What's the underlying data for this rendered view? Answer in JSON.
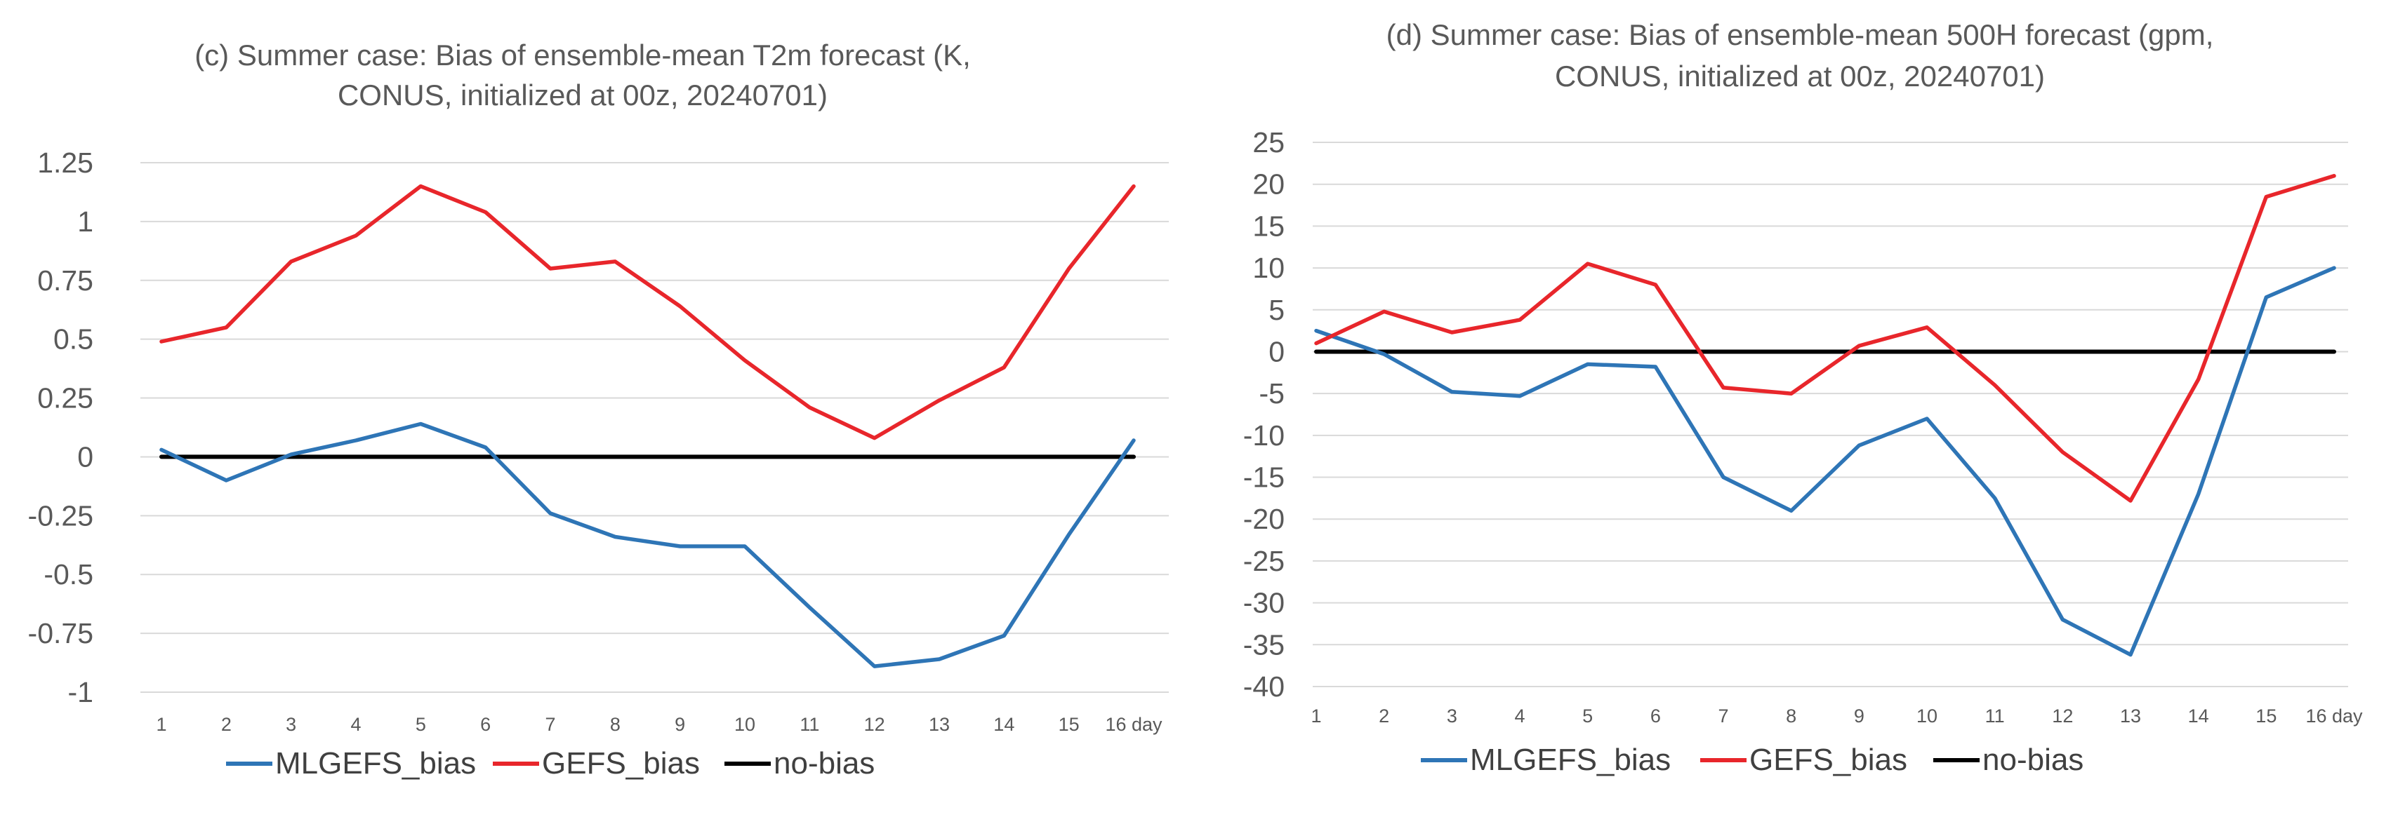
{
  "chart_data": [
    {
      "type": "line",
      "title_line1": "(c) Summer case: Bias of ensemble-mean T2m forecast (K,",
      "title_line2": "CONUS, initialized at 00z, 20240701)",
      "categories": [
        "1",
        "2",
        "3",
        "4",
        "5",
        "6",
        "7",
        "8",
        "9",
        "10",
        "11",
        "12",
        "13",
        "14",
        "15",
        "16 day"
      ],
      "ylim": [
        -1,
        1.25
      ],
      "yticks": [
        "1.25",
        "1",
        "0.75",
        "0.5",
        "0.25",
        "0",
        "-0.25",
        "-0.5",
        "-0.75",
        "-1"
      ],
      "grid": true,
      "legend_position": "bottom",
      "series": [
        {
          "name": "MLGEFS_bias",
          "color": "#2e75b6",
          "values": [
            0.03,
            -0.1,
            0.01,
            0.07,
            0.14,
            0.04,
            -0.24,
            -0.34,
            -0.38,
            -0.38,
            -0.64,
            -0.89,
            -0.86,
            -0.76,
            -0.33,
            0.07
          ]
        },
        {
          "name": "GEFS_bias",
          "color": "#e8262b",
          "values": [
            0.49,
            0.55,
            0.83,
            0.94,
            1.15,
            1.04,
            0.8,
            0.83,
            0.64,
            0.41,
            0.21,
            0.08,
            0.24,
            0.38,
            0.8,
            1.15
          ]
        },
        {
          "name": "no-bias",
          "color": "#000000",
          "values": [
            0,
            0,
            0,
            0,
            0,
            0,
            0,
            0,
            0,
            0,
            0,
            0,
            0,
            0,
            0,
            0
          ]
        }
      ]
    },
    {
      "type": "line",
      "title_line1": "(d) Summer case: Bias of ensemble-mean 500H forecast (gpm,",
      "title_line2": "CONUS, initialized at 00z, 20240701)",
      "categories": [
        "1",
        "2",
        "3",
        "4",
        "5",
        "6",
        "7",
        "8",
        "9",
        "10",
        "11",
        "12",
        "13",
        "14",
        "15",
        "16 day"
      ],
      "ylim": [
        -40,
        25
      ],
      "yticks": [
        "25",
        "20",
        "15",
        "10",
        "5",
        "0",
        "-5",
        "-10",
        "-15",
        "-20",
        "-25",
        "-30",
        "-35",
        "-40"
      ],
      "grid": true,
      "legend_position": "bottom",
      "series": [
        {
          "name": "MLGEFS_bias",
          "color": "#2e75b6",
          "values": [
            2.5,
            -0.3,
            -4.8,
            -5.3,
            -1.5,
            -1.8,
            -15,
            -19,
            -11.2,
            -8,
            -17.5,
            -32,
            -36.2,
            -17,
            6.5,
            10
          ]
        },
        {
          "name": "GEFS_bias",
          "color": "#e8262b",
          "values": [
            1,
            4.8,
            2.3,
            3.8,
            10.5,
            8,
            -4.3,
            -5,
            0.7,
            2.9,
            -4,
            -12,
            -17.8,
            -3.3,
            18.5,
            21
          ]
        },
        {
          "name": "no-bias",
          "color": "#000000",
          "values": [
            0,
            0,
            0,
            0,
            0,
            0,
            0,
            0,
            0,
            0,
            0,
            0,
            0,
            0,
            0,
            0
          ]
        }
      ]
    }
  ]
}
